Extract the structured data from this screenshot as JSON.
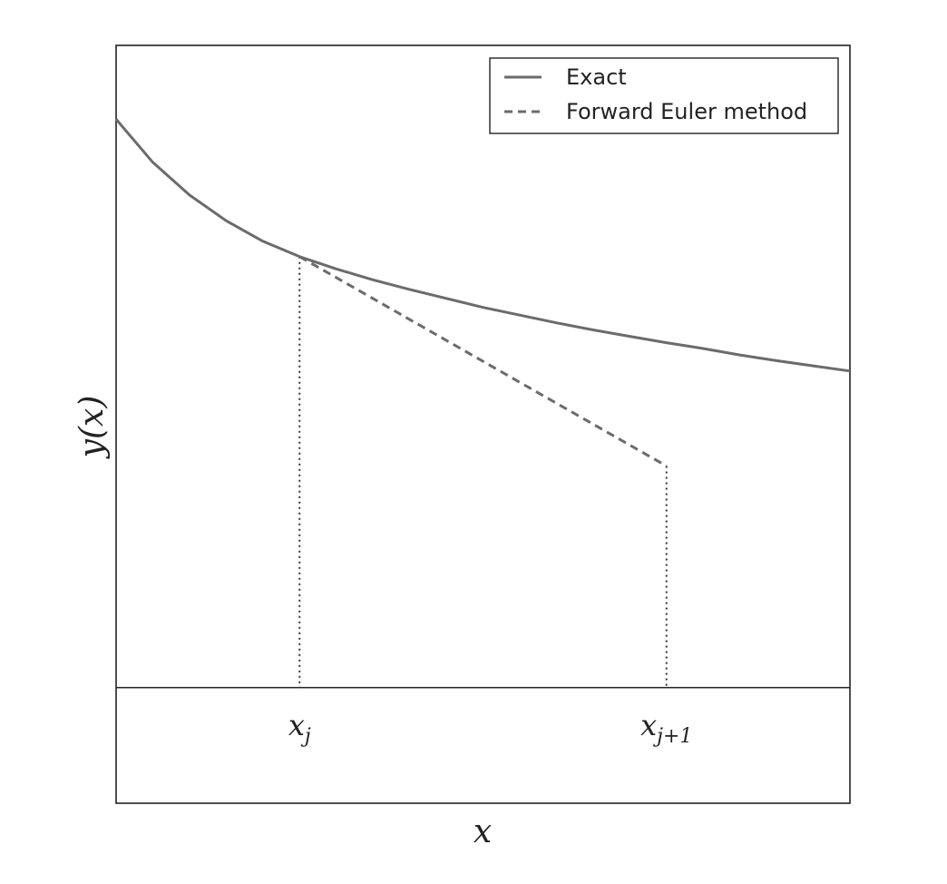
{
  "chart_data": {
    "type": "line",
    "xlabel": "x",
    "ylabel": "y(x)",
    "xlim": [
      0,
      1
    ],
    "ylim": [
      -0.18,
      1
    ],
    "grid": false,
    "legend": {
      "placement": "top-right"
    },
    "colors": {
      "series": "#6b6b6b",
      "axis": "#222222",
      "guide": "#333333"
    },
    "series": [
      {
        "name": "Exact",
        "style": "solid",
        "x": [
          0,
          0.05,
          0.1,
          0.15,
          0.2,
          0.25,
          0.3,
          0.35,
          0.4,
          0.45,
          0.5,
          0.55,
          0.6,
          0.65,
          0.7,
          0.75,
          0.8,
          0.85,
          0.9,
          0.95,
          1
        ],
        "y": [
          0.885,
          0.818,
          0.767,
          0.727,
          0.695,
          0.671,
          0.652,
          0.635,
          0.62,
          0.606,
          0.592,
          0.58,
          0.568,
          0.557,
          0.547,
          0.537,
          0.528,
          0.518,
          0.509,
          0.501,
          0.493
        ]
      },
      {
        "name": "Forward Euler method",
        "style": "dashed",
        "x": [
          0.25,
          0.75
        ],
        "y": [
          0.671,
          0.345
        ]
      }
    ],
    "guides": [
      {
        "x": 0.25,
        "y_top": 0.671,
        "label": "x_j",
        "base": "x",
        "sub": "j"
      },
      {
        "x": 0.75,
        "y_top": 0.345,
        "label": "x_{j+1}",
        "base": "x",
        "sub": "j+1"
      }
    ]
  }
}
